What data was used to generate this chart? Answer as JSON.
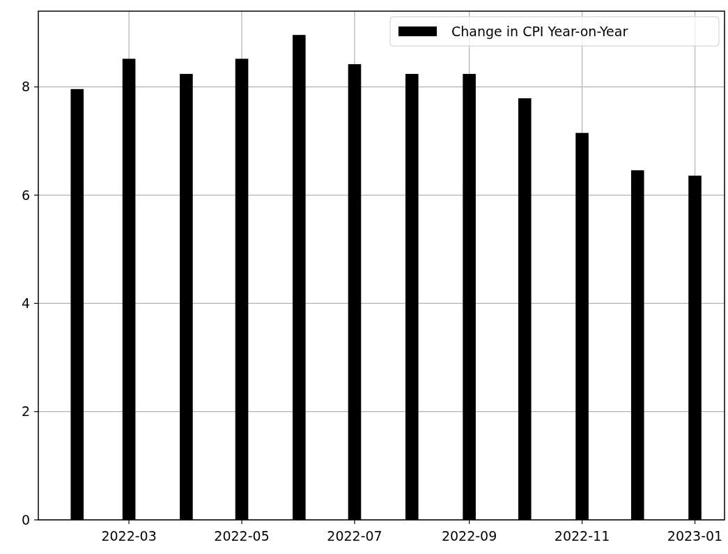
{
  "chart_data": {
    "type": "bar",
    "x": [
      "2022-02",
      "2022-03",
      "2022-04",
      "2022-05",
      "2022-06",
      "2022-07",
      "2022-08",
      "2022-09",
      "2022-10",
      "2022-11",
      "2022-12",
      "2023-01"
    ],
    "series": [
      {
        "name": "Change in CPI Year-on-Year",
        "color": "#000000",
        "values": [
          7.96,
          8.52,
          8.24,
          8.52,
          8.96,
          8.42,
          8.24,
          8.24,
          7.79,
          7.15,
          6.46,
          6.36
        ]
      }
    ],
    "xlim": [
      "2022-01-11",
      "2023-01-17"
    ],
    "xticks": [
      "2022-03",
      "2022-05",
      "2022-07",
      "2022-09",
      "2022-11",
      "2023-01"
    ],
    "ylim": [
      0,
      9.4
    ],
    "yticks": [
      0,
      2,
      4,
      6,
      8
    ],
    "grid": true,
    "legend": "top right"
  }
}
